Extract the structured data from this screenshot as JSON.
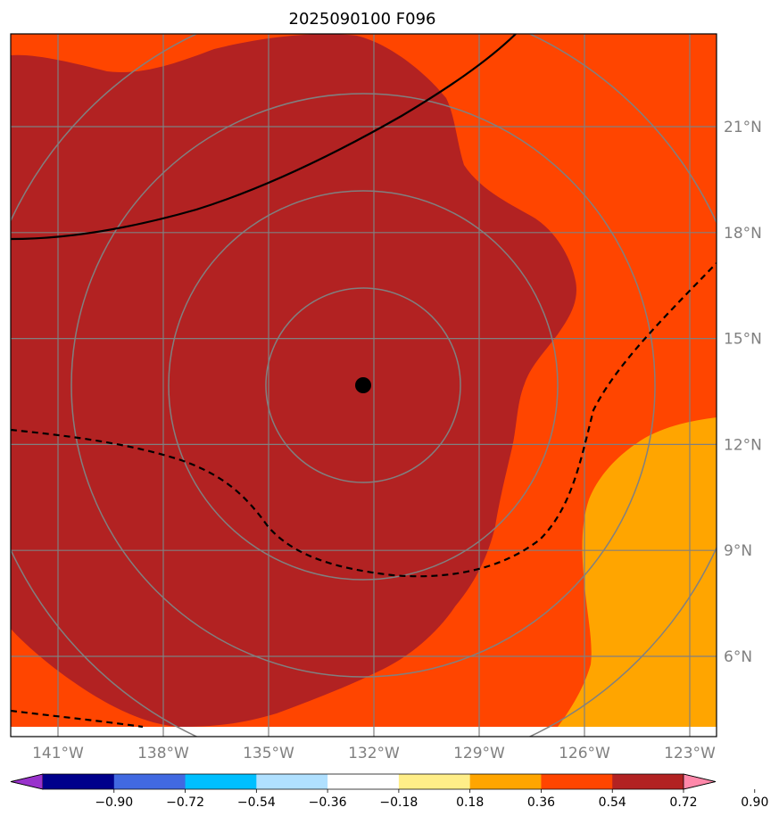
{
  "title": "2025090100 F096",
  "map": {
    "lat_labels": [
      "21°N",
      "18°N",
      "15°N",
      "12°N",
      "9°N",
      "6°N"
    ],
    "lon_labels": [
      "141°W",
      "138°W",
      "135°W",
      "132°W",
      "129°W",
      "126°W",
      "123°W"
    ],
    "lat_values": [
      21,
      18,
      15,
      12,
      9,
      6
    ],
    "lon_values": [
      -141,
      -138,
      -135,
      -132,
      -129,
      -126,
      -123
    ],
    "center_marker": {
      "lat": 13.6,
      "lon": -132.4
    },
    "range_rings": 4,
    "gridline_color": "#808080",
    "fill_colors": {
      "band_0_54_0_72": "#ff4500",
      "band_0_72_0_90": "#b22222",
      "band_0_36_0_54": "#ffa500"
    },
    "contour_color": "#000000"
  },
  "colorbar": {
    "ticks": [
      "−0.90",
      "−0.72",
      "−0.54",
      "−0.36",
      "−0.18",
      "0.18",
      "0.36",
      "0.54",
      "0.72",
      "0.90"
    ],
    "colors": [
      "#9932cc",
      "#00008b",
      "#4169e1",
      "#00bfff",
      "#b0e0ff",
      "#ffffff",
      "#ffee88",
      "#ffa500",
      "#ff4500",
      "#b22222",
      "#ff88aa"
    ],
    "extend": "both"
  }
}
